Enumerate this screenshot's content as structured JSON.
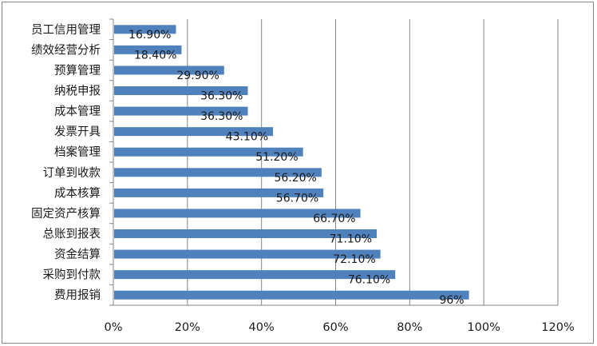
{
  "chart_data": {
    "type": "bar",
    "orientation": "horizontal",
    "title": "",
    "xlabel": "",
    "ylabel": "",
    "categories": [
      "员工信用管理",
      "绩效经营分析",
      "预算管理",
      "纳税申报",
      "成本管理",
      "发票开具",
      "档案管理",
      "订单到收款",
      "成本核算",
      "固定资产核算",
      "总账到报表",
      "资金结算",
      "采购到付款",
      "费用报销"
    ],
    "values": [
      16.9,
      18.4,
      29.9,
      36.3,
      36.3,
      43.1,
      51.2,
      56.2,
      56.7,
      66.7,
      71.1,
      72.1,
      76.1,
      96
    ],
    "data_labels": [
      "16.90%",
      "18.40%",
      "29.90%",
      "36.30%",
      "36.30%",
      "43.10%",
      "51.20%",
      "56.20%",
      "56.70%",
      "66.70%",
      "71.10%",
      "72.10%",
      "76.10%",
      "96%"
    ],
    "xlim": [
      0,
      120
    ],
    "x_ticks": [
      "0%",
      "20%",
      "40%",
      "60%",
      "80%",
      "100%",
      "120%"
    ],
    "grid": "vertical",
    "legend": "none",
    "bar_color": "#4f81bd"
  }
}
